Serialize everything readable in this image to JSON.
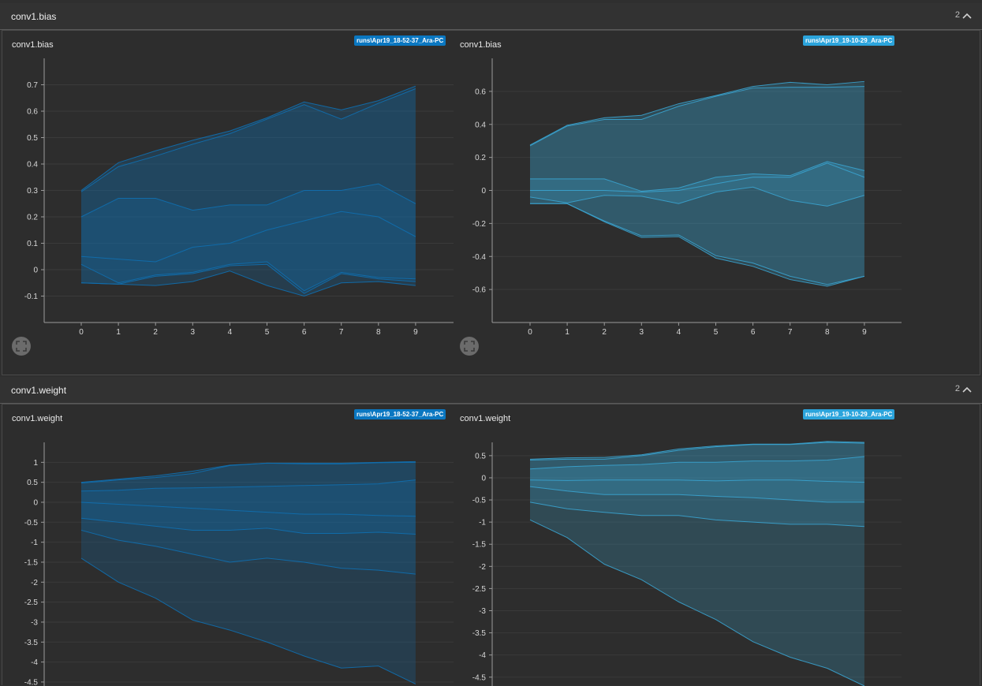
{
  "sections": [
    {
      "title": "conv1.bias",
      "count": "2",
      "charts": [
        {
          "title": "conv1.bias",
          "run": "runs\\Apr19_18-52-37_Ara-PC",
          "run_color": "#0a77c1"
        },
        {
          "title": "conv1.bias",
          "run": "runs\\Apr19_19-10-29_Ara-PC",
          "run_color": "#2ba4dc"
        }
      ]
    },
    {
      "title": "conv1.weight",
      "count": "2",
      "charts": [
        {
          "title": "conv1.weight",
          "run": "runs\\Apr19_18-52-37_Ara-PC",
          "run_color": "#0a77c1"
        },
        {
          "title": "conv1.weight",
          "run": "runs\\Apr19_19-10-29_Ara-PC",
          "run_color": "#2ba4dc"
        }
      ]
    }
  ],
  "chart_data": [
    {
      "type": "area",
      "title": "conv1.bias",
      "series_color": "#0f6fb0",
      "x": [
        0,
        1,
        2,
        3,
        4,
        5,
        6,
        7,
        8,
        9
      ],
      "ylim": [
        -0.2,
        0.8
      ],
      "yticks": [
        -0.1,
        0,
        0.1,
        0.2,
        0.3,
        0.4,
        0.5,
        0.6,
        0.7
      ],
      "yticklabels": [
        "-0.1",
        "0",
        "0.1",
        "0.2",
        "0.3",
        "0.4",
        "0.5",
        "0.6",
        "0.7"
      ],
      "xticklabels": [
        "0",
        "1",
        "2",
        "3",
        "4",
        "5",
        "6",
        "7",
        "8",
        "9"
      ],
      "percentiles": [
        [
          -0.05,
          -0.055,
          -0.06,
          -0.045,
          -0.005,
          -0.06,
          -0.1,
          -0.05,
          -0.045,
          -0.06
        ],
        [
          -0.05,
          -0.055,
          -0.025,
          -0.015,
          0.015,
          0.02,
          -0.09,
          -0.015,
          -0.035,
          -0.045
        ],
        [
          0.02,
          -0.05,
          -0.02,
          -0.01,
          0.02,
          0.03,
          -0.08,
          -0.01,
          -0.03,
          -0.035
        ],
        [
          0.05,
          0.04,
          0.03,
          0.085,
          0.1,
          0.15,
          0.185,
          0.22,
          0.2,
          0.125
        ],
        [
          0.2,
          0.27,
          0.27,
          0.225,
          0.245,
          0.245,
          0.3,
          0.3,
          0.325,
          0.25
        ],
        [
          0.295,
          0.39,
          0.43,
          0.475,
          0.515,
          0.57,
          0.625,
          0.57,
          0.63,
          0.685
        ],
        [
          0.3,
          0.405,
          0.45,
          0.49,
          0.525,
          0.575,
          0.635,
          0.605,
          0.64,
          0.695
        ]
      ]
    },
    {
      "type": "area",
      "title": "conv1.bias",
      "series_color": "#3aa3cf",
      "x": [
        0,
        1,
        2,
        3,
        4,
        5,
        6,
        7,
        8,
        9
      ],
      "ylim": [
        -0.8,
        0.8
      ],
      "yticks": [
        -0.6,
        -0.4,
        -0.2,
        0,
        0.2,
        0.4,
        0.6
      ],
      "yticklabels": [
        "-0.6",
        "-0.4",
        "-0.2",
        "0",
        "0.2",
        "0.4",
        "0.6"
      ],
      "xticklabels": [
        "0",
        "1",
        "2",
        "3",
        "4",
        "5",
        "6",
        "7",
        "8",
        "9"
      ],
      "percentiles": [
        [
          -0.08,
          -0.08,
          -0.19,
          -0.285,
          -0.28,
          -0.41,
          -0.46,
          -0.54,
          -0.58,
          -0.52
        ],
        [
          -0.08,
          -0.08,
          -0.185,
          -0.275,
          -0.27,
          -0.395,
          -0.44,
          -0.52,
          -0.57,
          -0.52
        ],
        [
          -0.04,
          -0.075,
          -0.03,
          -0.035,
          -0.08,
          -0.01,
          0.02,
          -0.06,
          -0.095,
          -0.03
        ],
        [
          0,
          0,
          0,
          -0.01,
          0,
          0.04,
          0.08,
          0.08,
          0.165,
          0.08
        ],
        [
          0.07,
          0.07,
          0.07,
          -0.005,
          0.015,
          0.08,
          0.1,
          0.09,
          0.175,
          0.12
        ],
        [
          0.27,
          0.39,
          0.43,
          0.43,
          0.51,
          0.57,
          0.62,
          0.625,
          0.625,
          0.63
        ],
        [
          0.275,
          0.395,
          0.44,
          0.455,
          0.525,
          0.575,
          0.63,
          0.655,
          0.64,
          0.66
        ]
      ]
    },
    {
      "type": "area",
      "title": "conv1.weight",
      "series_color": "#0f6fb0",
      "x": [
        0,
        1,
        2,
        3,
        4,
        5,
        6,
        7,
        8,
        9
      ],
      "ylim": [
        -4.6,
        1.5
      ],
      "yticks": [
        -4.5,
        -4,
        -3.5,
        -3,
        -2.5,
        -2,
        -1.5,
        -1,
        -0.5,
        0,
        0.5,
        1
      ],
      "yticklabels": [
        "-4.5",
        "-4",
        "-3.5",
        "-3",
        "-2.5",
        "-2",
        "-1.5",
        "-1",
        "-0.5",
        "0",
        "0.5",
        "1"
      ],
      "xticklabels": [],
      "percentiles": [
        [
          -1.4,
          -2.0,
          -2.4,
          -2.95,
          -3.2,
          -3.5,
          -3.85,
          -4.15,
          -4.1,
          -4.55
        ],
        [
          -0.7,
          -0.95,
          -1.1,
          -1.3,
          -1.5,
          -1.4,
          -1.5,
          -1.65,
          -1.7,
          -1.8
        ],
        [
          -0.4,
          -0.5,
          -0.6,
          -0.7,
          -0.7,
          -0.65,
          -0.78,
          -0.78,
          -0.75,
          -0.8
        ],
        [
          0,
          -0.05,
          -0.1,
          -0.15,
          -0.2,
          -0.25,
          -0.3,
          -0.3,
          -0.33,
          -0.35
        ],
        [
          0.28,
          0.3,
          0.35,
          0.36,
          0.38,
          0.4,
          0.42,
          0.44,
          0.46,
          0.56
        ],
        [
          0.48,
          0.56,
          0.62,
          0.72,
          0.92,
          0.98,
          0.96,
          0.96,
          0.99,
          1.0
        ],
        [
          0.5,
          0.58,
          0.66,
          0.78,
          0.93,
          0.98,
          0.98,
          0.98,
          1.0,
          1.02
        ]
      ]
    },
    {
      "type": "area",
      "title": "conv1.weight",
      "series_color": "#3aa3cf",
      "x": [
        0,
        1,
        2,
        3,
        4,
        5,
        6,
        7,
        8,
        9
      ],
      "ylim": [
        -4.7,
        0.8
      ],
      "yticks": [
        -4.5,
        -4,
        -3.5,
        -3,
        -2.5,
        -2,
        -1.5,
        -1,
        -0.5,
        0,
        0.5
      ],
      "yticklabels": [
        "-4.5",
        "-4",
        "-3.5",
        "-3",
        "-2.5",
        "-2",
        "-1.5",
        "-1",
        "-0.5",
        "0",
        "0.5"
      ],
      "xticklabels": [],
      "percentiles": [
        [
          -0.95,
          -1.35,
          -1.95,
          -2.3,
          -2.8,
          -3.2,
          -3.7,
          -4.05,
          -4.3,
          -4.7
        ],
        [
          -0.55,
          -0.7,
          -0.78,
          -0.85,
          -0.85,
          -0.95,
          -1.0,
          -1.05,
          -1.05,
          -1.1
        ],
        [
          -0.2,
          -0.3,
          -0.38,
          -0.38,
          -0.38,
          -0.42,
          -0.45,
          -0.5,
          -0.55,
          -0.55
        ],
        [
          -0.05,
          -0.06,
          -0.05,
          -0.05,
          -0.05,
          -0.07,
          -0.05,
          -0.05,
          -0.08,
          -0.1
        ],
        [
          0.2,
          0.25,
          0.28,
          0.3,
          0.35,
          0.35,
          0.38,
          0.38,
          0.4,
          0.48
        ],
        [
          0.4,
          0.42,
          0.42,
          0.5,
          0.62,
          0.7,
          0.75,
          0.75,
          0.8,
          0.78
        ],
        [
          0.42,
          0.45,
          0.46,
          0.52,
          0.65,
          0.72,
          0.76,
          0.76,
          0.82,
          0.8
        ]
      ]
    }
  ]
}
